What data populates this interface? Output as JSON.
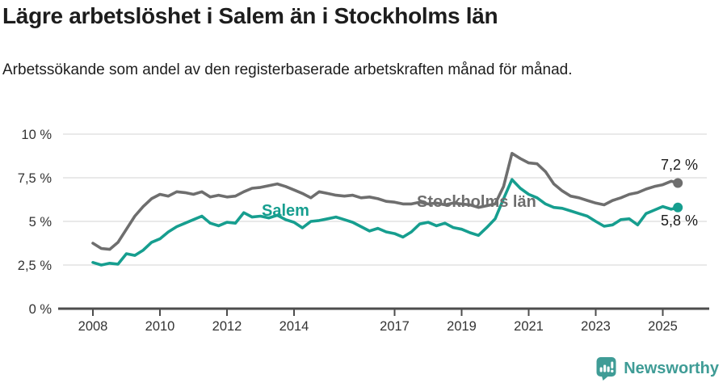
{
  "header": {
    "title": "Lägre arbetslöshet i Salem än i Stockholms län",
    "subtitle": "Arbetssökande som andel av den registerbaserade arbetskraften månad för månad."
  },
  "chart_data": {
    "type": "line",
    "title": "Lägre arbetslöshet i Salem än i Stockholms län",
    "subtitle": "Arbetssökande som andel av den registerbaserade arbetskraften månad för månad.",
    "unit": "%",
    "grid": "horizontal",
    "legend_position": "inline-labels",
    "ylim": [
      0,
      10
    ],
    "xlim": [
      2008,
      2025.8
    ],
    "y_ticks": [
      0,
      2.5,
      5,
      7.5,
      10
    ],
    "y_tick_labels": [
      "0 %",
      "2,5 %",
      "5 %",
      "7,5 %",
      "10 %"
    ],
    "x_ticks": [
      2008,
      2010,
      2012,
      2014,
      2017,
      2019,
      2021,
      2023,
      2025
    ],
    "x_tick_labels": [
      "2008",
      "2010",
      "2012",
      "2014",
      "2017",
      "2019",
      "2021",
      "2023",
      "2025"
    ],
    "x": [
      2008,
      2008.25,
      2008.5,
      2008.75,
      2009,
      2009.25,
      2009.5,
      2009.75,
      2010,
      2010.25,
      2010.5,
      2010.75,
      2011,
      2011.25,
      2011.5,
      2011.75,
      2012,
      2012.25,
      2012.5,
      2012.75,
      2013,
      2013.25,
      2013.5,
      2013.75,
      2014,
      2014.25,
      2014.5,
      2014.75,
      2015,
      2015.25,
      2015.5,
      2015.75,
      2016,
      2016.25,
      2016.5,
      2016.75,
      2017,
      2017.25,
      2017.5,
      2017.75,
      2018,
      2018.25,
      2018.5,
      2018.75,
      2019,
      2019.25,
      2019.5,
      2019.75,
      2020,
      2020.25,
      2020.5,
      2020.75,
      2021,
      2021.25,
      2021.5,
      2021.75,
      2022,
      2022.25,
      2022.5,
      2022.75,
      2023,
      2023.25,
      2023.5,
      2023.75,
      2024,
      2024.25,
      2024.5,
      2024.75,
      2025,
      2025.25,
      2025.45
    ],
    "series": [
      {
        "name": "Stockholms län",
        "color": "#6e6e6e",
        "end_label": "7,2 %",
        "end_value": 7.2,
        "values": [
          3.75,
          3.45,
          3.4,
          3.8,
          4.55,
          5.3,
          5.85,
          6.3,
          6.55,
          6.45,
          6.7,
          6.65,
          6.55,
          6.7,
          6.4,
          6.5,
          6.4,
          6.45,
          6.7,
          6.9,
          6.95,
          7.05,
          7.15,
          7.0,
          6.8,
          6.6,
          6.35,
          6.7,
          6.6,
          6.5,
          6.45,
          6.5,
          6.35,
          6.4,
          6.3,
          6.15,
          6.1,
          6.0,
          6.0,
          6.1,
          6.0,
          6.05,
          5.95,
          6.05,
          6.0,
          5.95,
          5.8,
          5.9,
          6.0,
          7.0,
          8.9,
          8.6,
          8.35,
          8.3,
          7.85,
          7.15,
          6.75,
          6.45,
          6.35,
          6.2,
          6.05,
          5.95,
          6.2,
          6.35,
          6.55,
          6.65,
          6.85,
          7.0,
          7.1,
          7.3,
          7.2
        ]
      },
      {
        "name": "Salem",
        "color": "#169e8f",
        "end_label": "5,8 %",
        "end_value": 5.8,
        "values": [
          2.65,
          2.5,
          2.6,
          2.55,
          3.15,
          3.05,
          3.35,
          3.8,
          4.0,
          4.4,
          4.7,
          4.9,
          5.1,
          5.3,
          4.9,
          4.75,
          4.95,
          4.9,
          5.5,
          5.25,
          5.3,
          5.2,
          5.35,
          5.1,
          4.95,
          4.63,
          5.0,
          5.05,
          5.15,
          5.25,
          5.1,
          4.95,
          4.7,
          4.45,
          4.6,
          4.4,
          4.3,
          4.1,
          4.4,
          4.85,
          4.95,
          4.75,
          4.9,
          4.65,
          4.55,
          4.35,
          4.2,
          4.65,
          5.15,
          6.3,
          7.4,
          6.9,
          6.55,
          6.35,
          6.0,
          5.8,
          5.75,
          5.6,
          5.45,
          5.3,
          5.0,
          4.72,
          4.8,
          5.1,
          5.15,
          4.8,
          5.45,
          5.65,
          5.85,
          5.7,
          5.8
        ]
      }
    ],
    "colors": {
      "grid": "#dcdcdc",
      "axis": "#4d4d4d",
      "tick_text": "#333333",
      "end_label_text": "#1a1a1a"
    }
  },
  "footer": {
    "brand": "Newsworthy",
    "brand_color": "#3f9c96",
    "logo_icon": "newsworthy-speech-bubble-bar-chart-icon"
  }
}
